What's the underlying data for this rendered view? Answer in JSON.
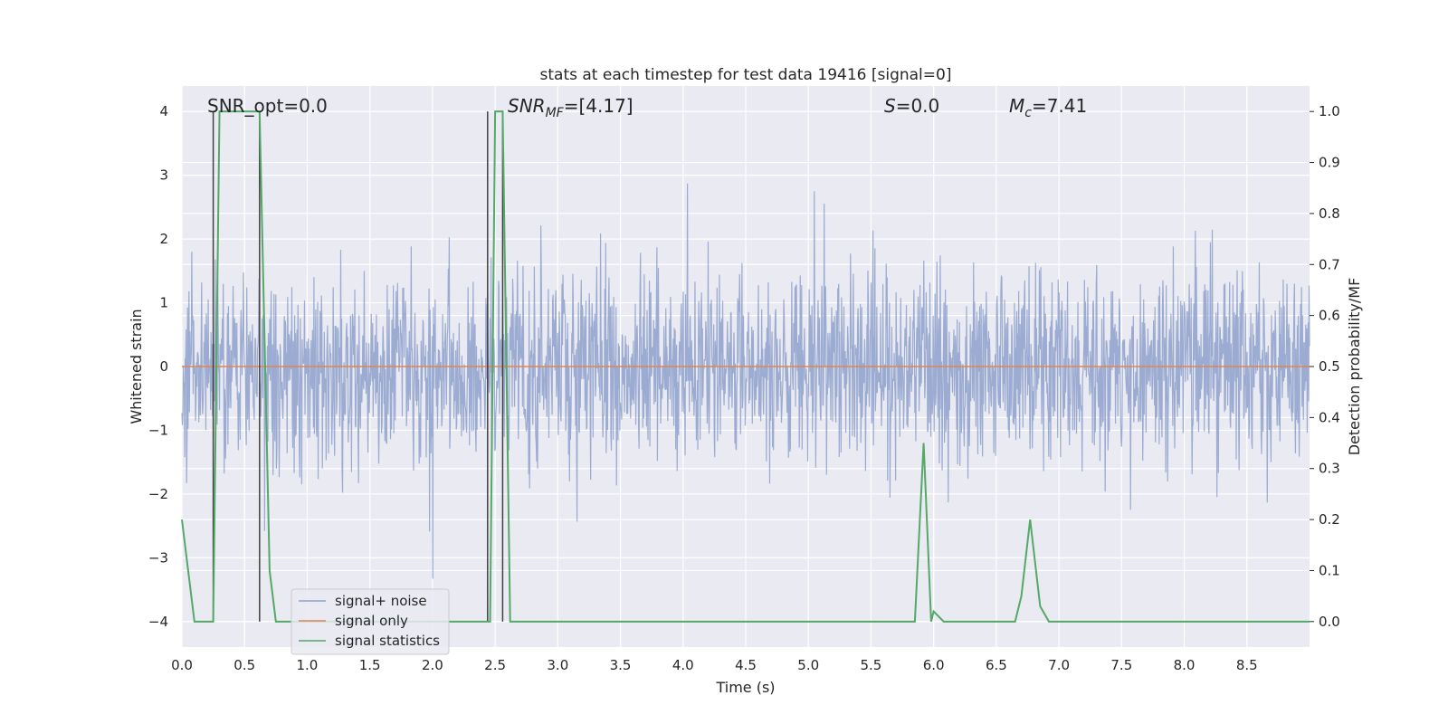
{
  "chart_data": {
    "type": "line",
    "title": "stats at each timestep for test data 19416 [signal=0]",
    "xlabel": "Time (s)",
    "ylabel_left": "Whitened strain",
    "ylabel_right": "Detection probability/MF",
    "xlim": [
      0.0,
      9.0
    ],
    "ylim_left": [
      -4.4,
      4.4
    ],
    "ylim_right": [
      -0.05,
      1.05
    ],
    "x_ticks": [
      "0.0",
      "0.5",
      "1.0",
      "1.5",
      "2.0",
      "2.5",
      "3.0",
      "3.5",
      "4.0",
      "4.5",
      "5.0",
      "5.5",
      "6.0",
      "6.5",
      "7.0",
      "7.5",
      "8.0",
      "8.5"
    ],
    "y_ticks_left": [
      "−4",
      "−3",
      "−2",
      "−1",
      "0",
      "1",
      "2",
      "3",
      "4"
    ],
    "y_ticks_right": [
      "0.0",
      "0.1",
      "0.2",
      "0.3",
      "0.4",
      "0.5",
      "0.6",
      "0.7",
      "0.8",
      "0.9",
      "1.0"
    ],
    "grid": true,
    "legend_position": "lower-left",
    "annotations": {
      "snr_opt": "SNR_opt=0.0",
      "snr_mf_main": "SNR",
      "snr_mf_sub": "MF",
      "snr_mf_val": "=[4.17]",
      "s_main": "S",
      "s_val": "=0.0",
      "mc_main": "M",
      "mc_sub": "c",
      "mc_val": "=7.41"
    },
    "vertical_lines_x": [
      0.25,
      0.62,
      2.44,
      2.56
    ],
    "series": [
      {
        "name": "signal+ noise",
        "color": "#8da0cb",
        "axis": "left",
        "note_values": "noise band, approximately within [-2.2, 2.6] with spikes up to 4.0 and down to -3.9"
      },
      {
        "name": "signal only",
        "color": "#dd8452",
        "axis": "left",
        "x": [
          0.0,
          9.0
        ],
        "y": [
          0.0,
          0.0
        ]
      },
      {
        "name": "signal statistics",
        "color": "#55a868",
        "axis": "right",
        "x": [
          0.0,
          0.05,
          0.1,
          0.2,
          0.25,
          0.3,
          0.4,
          0.55,
          0.62,
          0.7,
          0.75,
          0.8,
          1.0,
          2.4,
          2.46,
          2.5,
          2.56,
          2.62,
          2.7,
          2.8,
          3.0,
          5.5,
          5.85,
          5.92,
          5.98,
          6.0,
          6.08,
          6.5,
          6.65,
          6.7,
          6.77,
          6.85,
          6.92,
          7.0,
          9.0
        ],
        "y": [
          0.2,
          0.1,
          0.0,
          0.0,
          0.0,
          1.0,
          1.0,
          1.0,
          1.0,
          0.1,
          0.0,
          0.0,
          0.0,
          0.0,
          0.0,
          1.0,
          1.0,
          0.0,
          0.0,
          0.0,
          0.0,
          0.0,
          0.0,
          0.35,
          0.0,
          0.02,
          0.0,
          0.0,
          0.0,
          0.05,
          0.2,
          0.03,
          0.0,
          0.0,
          0.0
        ]
      }
    ]
  }
}
